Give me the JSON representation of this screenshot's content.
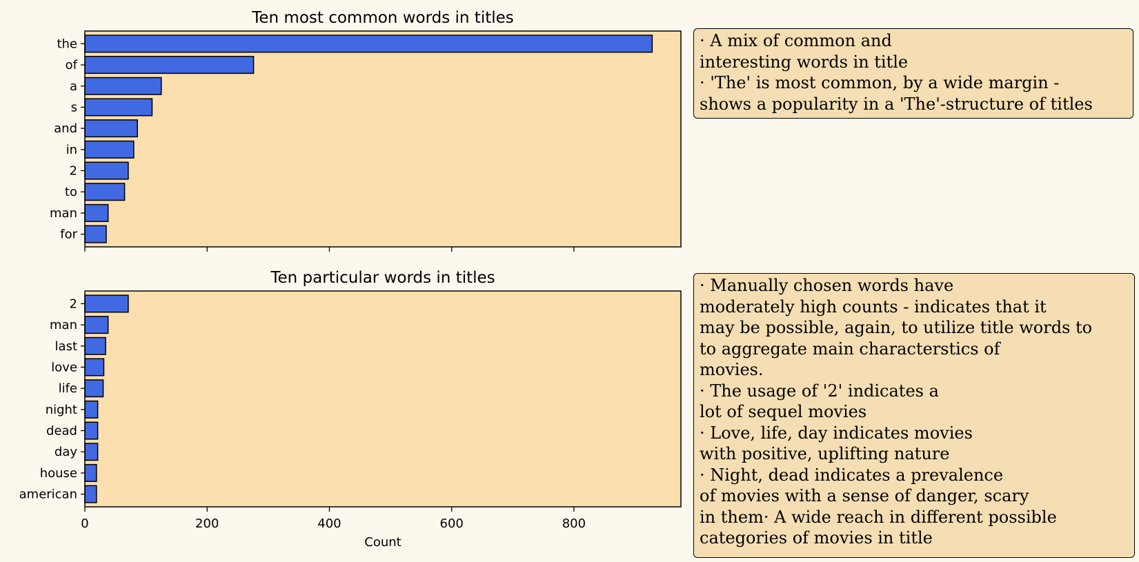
{
  "chart_data": [
    {
      "type": "bar",
      "orientation": "horizontal",
      "title": "Ten most common words in titles",
      "categories": [
        "the",
        "of",
        "a",
        "s",
        "and",
        "in",
        "2",
        "to",
        "man",
        "for"
      ],
      "values": [
        928,
        276,
        125,
        110,
        86,
        80,
        71,
        65,
        38,
        35
      ],
      "xlim": [
        0,
        975
      ],
      "xticks": [
        0,
        200,
        400,
        600,
        800
      ],
      "show_xtick_labels": false,
      "xlabel": "",
      "ylabel": "",
      "grid": false,
      "colors": {
        "bar": "#4169e1",
        "bar_edge": "#000000",
        "plot_bg": "#fcdfae"
      }
    },
    {
      "type": "bar",
      "orientation": "horizontal",
      "title": "Ten particular words in titles",
      "categories": [
        "2",
        "man",
        "last",
        "love",
        "life",
        "night",
        "dead",
        "day",
        "house",
        "american"
      ],
      "values": [
        71,
        38,
        34,
        31,
        30,
        21,
        21,
        21,
        19,
        19
      ],
      "xlim": [
        0,
        975
      ],
      "xticks": [
        0,
        200,
        400,
        600,
        800
      ],
      "xtick_labels": [
        "0",
        "200",
        "400",
        "600",
        "800"
      ],
      "show_xtick_labels": true,
      "xlabel": "Count",
      "ylabel": "",
      "grid": false,
      "colors": {
        "bar": "#4169e1",
        "bar_edge": "#000000",
        "plot_bg": "#fcdfae"
      }
    }
  ],
  "notes": {
    "top": [
      "· A mix of common and",
      "interesting words in title",
      "· 'The' is most common, by a wide margin -",
      "shows a popularity in a 'The'-structure of titles"
    ],
    "bottom": [
      "· Manually chosen words have",
      "moderately high counts - indicates that it",
      "may be possible, again, to utilize title words to",
      "to aggregate main characterstics of",
      "movies.",
      "· The usage of '2' indicates a",
      "lot of sequel movies",
      "· Love, life, day indicates movies",
      "with positive, uplifting nature",
      "· Night, dead indicates a prevalence",
      "of movies with a sense of danger, scary",
      "in them· A wide reach in different possible",
      "categories of movies in title"
    ]
  }
}
